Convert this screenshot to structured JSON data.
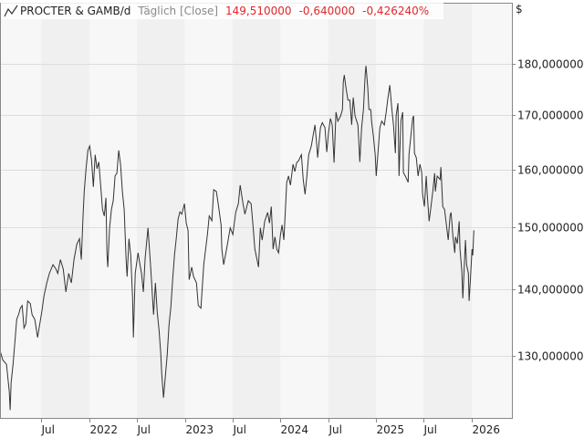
{
  "header": {
    "icon": "line-chart-icon",
    "instrument": "PROCTER & GAMB/d",
    "period": "Täglich [Close]",
    "last": "149,510000",
    "change": "-0,640000",
    "change_pct": "-0,426240%"
  },
  "colors": {
    "line": "#333333",
    "negative": "#e0262b",
    "grid": "#dddddd",
    "band_light": "#f7f7f7",
    "band_dark": "#f0f0f0"
  },
  "chart_data": {
    "type": "line",
    "title": "PROCTER & GAMB/d",
    "currency_label": "$",
    "y_scale": "log",
    "ylim": [
      121,
      183
    ],
    "grid": true,
    "y_ticks": [
      {
        "value": 130,
        "label": "130,000000"
      },
      {
        "value": 140,
        "label": "140,000000"
      },
      {
        "value": 150,
        "label": "150,000000"
      },
      {
        "value": 160,
        "label": "160,000000"
      },
      {
        "value": 170,
        "label": "170,000000"
      },
      {
        "value": 180,
        "label": "180,000000"
      }
    ],
    "x_ticks": [
      {
        "date": "2021-07-01",
        "label": "Jul"
      },
      {
        "date": "2022-01-01",
        "label": "2022"
      },
      {
        "date": "2022-07-01",
        "label": "Jul"
      },
      {
        "date": "2023-01-01",
        "label": "2023"
      },
      {
        "date": "2023-07-01",
        "label": "Jul"
      },
      {
        "date": "2024-01-01",
        "label": "2024"
      },
      {
        "date": "2024-07-01",
        "label": "Jul"
      },
      {
        "date": "2025-01-01",
        "label": "2025"
      },
      {
        "date": "2025-07-01",
        "label": "Jul"
      },
      {
        "date": "2026-01-01",
        "label": "2026"
      }
    ],
    "series": [
      {
        "points": [
          [
            "2021-01-25",
            130.7
          ],
          [
            "2021-02-04",
            129.4
          ],
          [
            "2021-02-18",
            128.8
          ],
          [
            "2021-03-01",
            124.9
          ],
          [
            "2021-03-04",
            122.4
          ],
          [
            "2021-03-08",
            126.2
          ],
          [
            "2021-03-15",
            128.8
          ],
          [
            "2021-03-22",
            132.0
          ],
          [
            "2021-03-29",
            135.4
          ],
          [
            "2021-04-05",
            136.1
          ],
          [
            "2021-04-12",
            137.1
          ],
          [
            "2021-04-19",
            137.5
          ],
          [
            "2021-04-26",
            134.1
          ],
          [
            "2021-05-03",
            134.7
          ],
          [
            "2021-05-10",
            138.2
          ],
          [
            "2021-05-20",
            137.8
          ],
          [
            "2021-05-27",
            136.1
          ],
          [
            "2021-06-06",
            135.4
          ],
          [
            "2021-06-17",
            132.7
          ],
          [
            "2021-06-27",
            135.1
          ],
          [
            "2021-07-04",
            136.8
          ],
          [
            "2021-07-11",
            138.9
          ],
          [
            "2021-07-22",
            141.0
          ],
          [
            "2021-08-01",
            142.5
          ],
          [
            "2021-08-15",
            143.9
          ],
          [
            "2021-08-26",
            143.2
          ],
          [
            "2021-09-02",
            142.5
          ],
          [
            "2021-09-12",
            144.7
          ],
          [
            "2021-09-23",
            143.2
          ],
          [
            "2021-10-03",
            139.6
          ],
          [
            "2021-10-14",
            142.5
          ],
          [
            "2021-10-24",
            141.0
          ],
          [
            "2021-11-03",
            144.7
          ],
          [
            "2021-11-14",
            147.2
          ],
          [
            "2021-11-24",
            148.1
          ],
          [
            "2021-12-01",
            144.7
          ],
          [
            "2021-12-08",
            152.2
          ],
          [
            "2021-12-12",
            156.1
          ],
          [
            "2021-12-19",
            160.1
          ],
          [
            "2021-12-26",
            163.4
          ],
          [
            "2022-01-02",
            164.2
          ],
          [
            "2022-01-09",
            161.7
          ],
          [
            "2022-01-16",
            156.9
          ],
          [
            "2022-01-23",
            162.6
          ],
          [
            "2022-01-30",
            160.1
          ],
          [
            "2022-02-06",
            161.3
          ],
          [
            "2022-02-13",
            157.2
          ],
          [
            "2022-02-20",
            153.0
          ],
          [
            "2022-02-27",
            151.9
          ],
          [
            "2022-03-05",
            155.0
          ],
          [
            "2022-03-09",
            145.8
          ],
          [
            "2022-03-12",
            143.5
          ],
          [
            "2022-03-19",
            149.9
          ],
          [
            "2022-03-26",
            153.0
          ],
          [
            "2022-04-02",
            154.5
          ],
          [
            "2022-04-09",
            158.8
          ],
          [
            "2022-04-16",
            159.3
          ],
          [
            "2022-04-23",
            163.4
          ],
          [
            "2022-04-30",
            160.9
          ],
          [
            "2022-05-07",
            156.1
          ],
          [
            "2022-05-14",
            153.0
          ],
          [
            "2022-05-21",
            144.7
          ],
          [
            "2022-05-25",
            142.0
          ],
          [
            "2022-06-01",
            148.1
          ],
          [
            "2022-06-08",
            145.4
          ],
          [
            "2022-06-15",
            138.6
          ],
          [
            "2022-06-18",
            132.7
          ],
          [
            "2022-06-25",
            142.5
          ],
          [
            "2022-07-06",
            145.8
          ],
          [
            "2022-07-13",
            143.9
          ],
          [
            "2022-07-19",
            142.5
          ],
          [
            "2022-07-26",
            139.6
          ],
          [
            "2022-08-02",
            145.0
          ],
          [
            "2022-08-13",
            149.9
          ],
          [
            "2022-08-23",
            143.5
          ],
          [
            "2022-09-03",
            136.1
          ],
          [
            "2022-09-10",
            141.0
          ],
          [
            "2022-09-17",
            136.5
          ],
          [
            "2022-09-24",
            133.8
          ],
          [
            "2022-10-01",
            130.1
          ],
          [
            "2022-10-04",
            127.5
          ],
          [
            "2022-10-11",
            124.1
          ],
          [
            "2022-10-18",
            127.1
          ],
          [
            "2022-10-25",
            130.1
          ],
          [
            "2022-11-01",
            134.5
          ],
          [
            "2022-11-08",
            137.2
          ],
          [
            "2022-11-15",
            141.5
          ],
          [
            "2022-11-22",
            145.4
          ],
          [
            "2022-11-29",
            148.2
          ],
          [
            "2022-12-06",
            151.4
          ],
          [
            "2022-12-13",
            152.6
          ],
          [
            "2022-12-20",
            152.2
          ],
          [
            "2022-12-30",
            154.0
          ],
          [
            "2023-01-06",
            150.7
          ],
          [
            "2023-01-13",
            149.5
          ],
          [
            "2023-01-17",
            141.5
          ],
          [
            "2023-01-27",
            143.5
          ],
          [
            "2023-02-03",
            142.0
          ],
          [
            "2023-02-14",
            141.0
          ],
          [
            "2023-02-21",
            137.5
          ],
          [
            "2023-03-03",
            137.1
          ],
          [
            "2023-03-14",
            143.9
          ],
          [
            "2023-03-28",
            148.8
          ],
          [
            "2023-04-04",
            151.9
          ],
          [
            "2023-04-14",
            151.1
          ],
          [
            "2023-04-21",
            156.4
          ],
          [
            "2023-05-01",
            156.1
          ],
          [
            "2023-05-08",
            154.0
          ],
          [
            "2023-05-19",
            150.4
          ],
          [
            "2023-05-22",
            146.4
          ],
          [
            "2023-05-29",
            143.9
          ],
          [
            "2023-06-09",
            146.4
          ],
          [
            "2023-06-23",
            149.9
          ],
          [
            "2023-07-03",
            148.8
          ],
          [
            "2023-07-14",
            152.5
          ],
          [
            "2023-07-24",
            154.0
          ],
          [
            "2023-07-31",
            157.2
          ],
          [
            "2023-08-11",
            154.0
          ],
          [
            "2023-08-18",
            152.2
          ],
          [
            "2023-08-31",
            154.5
          ],
          [
            "2023-09-11",
            154.0
          ],
          [
            "2023-09-18",
            150.4
          ],
          [
            "2023-09-25",
            146.4
          ],
          [
            "2023-10-09",
            143.5
          ],
          [
            "2023-10-16",
            149.9
          ],
          [
            "2023-10-23",
            147.9
          ],
          [
            "2023-11-02",
            151.0
          ],
          [
            "2023-11-13",
            152.5
          ],
          [
            "2023-11-20",
            150.7
          ],
          [
            "2023-11-27",
            153.5
          ],
          [
            "2023-12-04",
            146.4
          ],
          [
            "2023-12-11",
            148.4
          ],
          [
            "2023-12-18",
            146.4
          ],
          [
            "2023-12-25",
            145.8
          ],
          [
            "2024-01-01",
            148.8
          ],
          [
            "2024-01-07",
            150.4
          ],
          [
            "2024-01-14",
            147.9
          ],
          [
            "2024-01-21",
            154.0
          ],
          [
            "2024-01-25",
            157.7
          ],
          [
            "2024-02-01",
            158.8
          ],
          [
            "2024-02-08",
            157.2
          ],
          [
            "2024-02-18",
            160.9
          ],
          [
            "2024-02-25",
            159.6
          ],
          [
            "2024-03-03",
            161.2
          ],
          [
            "2024-03-10",
            161.5
          ],
          [
            "2024-03-21",
            162.6
          ],
          [
            "2024-03-28",
            158.2
          ],
          [
            "2024-04-04",
            155.6
          ],
          [
            "2024-04-11",
            158.8
          ],
          [
            "2024-04-18",
            162.6
          ],
          [
            "2024-04-28",
            164.2
          ],
          [
            "2024-05-05",
            166.2
          ],
          [
            "2024-05-12",
            168.1
          ],
          [
            "2024-05-19",
            164.2
          ],
          [
            "2024-05-22",
            162.1
          ],
          [
            "2024-06-02",
            167.6
          ],
          [
            "2024-06-09",
            168.5
          ],
          [
            "2024-06-19",
            167.6
          ],
          [
            "2024-06-26",
            163.1
          ],
          [
            "2024-07-03",
            166.8
          ],
          [
            "2024-07-10",
            169.3
          ],
          [
            "2024-07-17",
            168.1
          ],
          [
            "2024-07-24",
            161.2
          ],
          [
            "2024-07-31",
            170.5
          ],
          [
            "2024-08-07",
            168.8
          ],
          [
            "2024-08-18",
            169.8
          ],
          [
            "2024-08-25",
            171.0
          ],
          [
            "2024-08-28",
            176.3
          ],
          [
            "2024-09-01",
            177.7
          ],
          [
            "2024-09-08",
            175.0
          ],
          [
            "2024-09-15",
            172.8
          ],
          [
            "2024-09-22",
            172.8
          ],
          [
            "2024-09-29",
            168.1
          ],
          [
            "2024-10-05",
            173.3
          ],
          [
            "2024-10-12",
            169.8
          ],
          [
            "2024-10-23",
            168.1
          ],
          [
            "2024-10-26",
            165.4
          ],
          [
            "2024-10-30",
            161.3
          ],
          [
            "2024-11-06",
            167.6
          ],
          [
            "2024-11-13",
            171.0
          ],
          [
            "2024-11-20",
            178.1
          ],
          [
            "2024-11-23",
            179.5
          ],
          [
            "2024-11-30",
            175.0
          ],
          [
            "2024-12-04",
            171.0
          ],
          [
            "2024-12-11",
            171.0
          ],
          [
            "2024-12-14",
            168.8
          ],
          [
            "2024-12-21",
            166.0
          ],
          [
            "2024-12-28",
            162.6
          ],
          [
            "2025-01-01",
            158.8
          ],
          [
            "2025-01-08",
            163.1
          ],
          [
            "2025-01-15",
            167.6
          ],
          [
            "2025-01-22",
            168.8
          ],
          [
            "2025-02-01",
            168.1
          ],
          [
            "2025-02-08",
            170.5
          ],
          [
            "2025-02-15",
            173.3
          ],
          [
            "2025-02-22",
            175.7
          ],
          [
            "2025-03-01",
            171.5
          ],
          [
            "2025-03-08",
            168.1
          ],
          [
            "2025-03-15",
            162.9
          ],
          [
            "2025-03-18",
            169.8
          ],
          [
            "2025-03-25",
            172.2
          ],
          [
            "2025-03-29",
            158.8
          ],
          [
            "2025-04-05",
            168.8
          ],
          [
            "2025-04-12",
            170.5
          ],
          [
            "2025-04-15",
            159.4
          ],
          [
            "2025-04-22",
            158.8
          ],
          [
            "2025-05-03",
            157.7
          ],
          [
            "2025-05-06",
            162.6
          ],
          [
            "2025-05-13",
            165.9
          ],
          [
            "2025-05-20",
            169.3
          ],
          [
            "2025-05-24",
            169.8
          ],
          [
            "2025-05-27",
            162.9
          ],
          [
            "2025-06-03",
            162.1
          ],
          [
            "2025-06-10",
            158.8
          ],
          [
            "2025-06-17",
            160.9
          ],
          [
            "2025-06-24",
            159.4
          ],
          [
            "2025-06-27",
            155.6
          ],
          [
            "2025-07-04",
            153.5
          ],
          [
            "2025-07-11",
            158.8
          ],
          [
            "2025-07-15",
            155.6
          ],
          [
            "2025-07-22",
            151.0
          ],
          [
            "2025-07-29",
            153.5
          ],
          [
            "2025-08-05",
            156.1
          ],
          [
            "2025-08-12",
            159.3
          ],
          [
            "2025-08-15",
            156.1
          ],
          [
            "2025-08-22",
            158.8
          ],
          [
            "2025-09-02",
            158.2
          ],
          [
            "2025-09-05",
            160.4
          ],
          [
            "2025-09-12",
            153.5
          ],
          [
            "2025-09-19",
            153.0
          ],
          [
            "2025-09-26",
            150.4
          ],
          [
            "2025-10-03",
            147.9
          ],
          [
            "2025-10-10",
            151.9
          ],
          [
            "2025-10-14",
            152.5
          ],
          [
            "2025-10-21",
            148.4
          ],
          [
            "2025-10-28",
            145.8
          ],
          [
            "2025-10-31",
            148.4
          ],
          [
            "2025-11-07",
            147.3
          ],
          [
            "2025-11-14",
            151.0
          ],
          [
            "2025-11-17",
            146.4
          ],
          [
            "2025-11-24",
            142.9
          ],
          [
            "2025-11-28",
            138.6
          ],
          [
            "2025-12-01",
            141.4
          ],
          [
            "2025-12-08",
            147.9
          ],
          [
            "2025-12-12",
            143.9
          ],
          [
            "2025-12-19",
            142.5
          ],
          [
            "2025-12-22",
            138.2
          ],
          [
            "2025-12-26",
            141.0
          ],
          [
            "2026-01-02",
            146.4
          ],
          [
            "2026-01-05",
            145.4
          ],
          [
            "2026-01-09",
            149.51
          ]
        ]
      }
    ]
  }
}
